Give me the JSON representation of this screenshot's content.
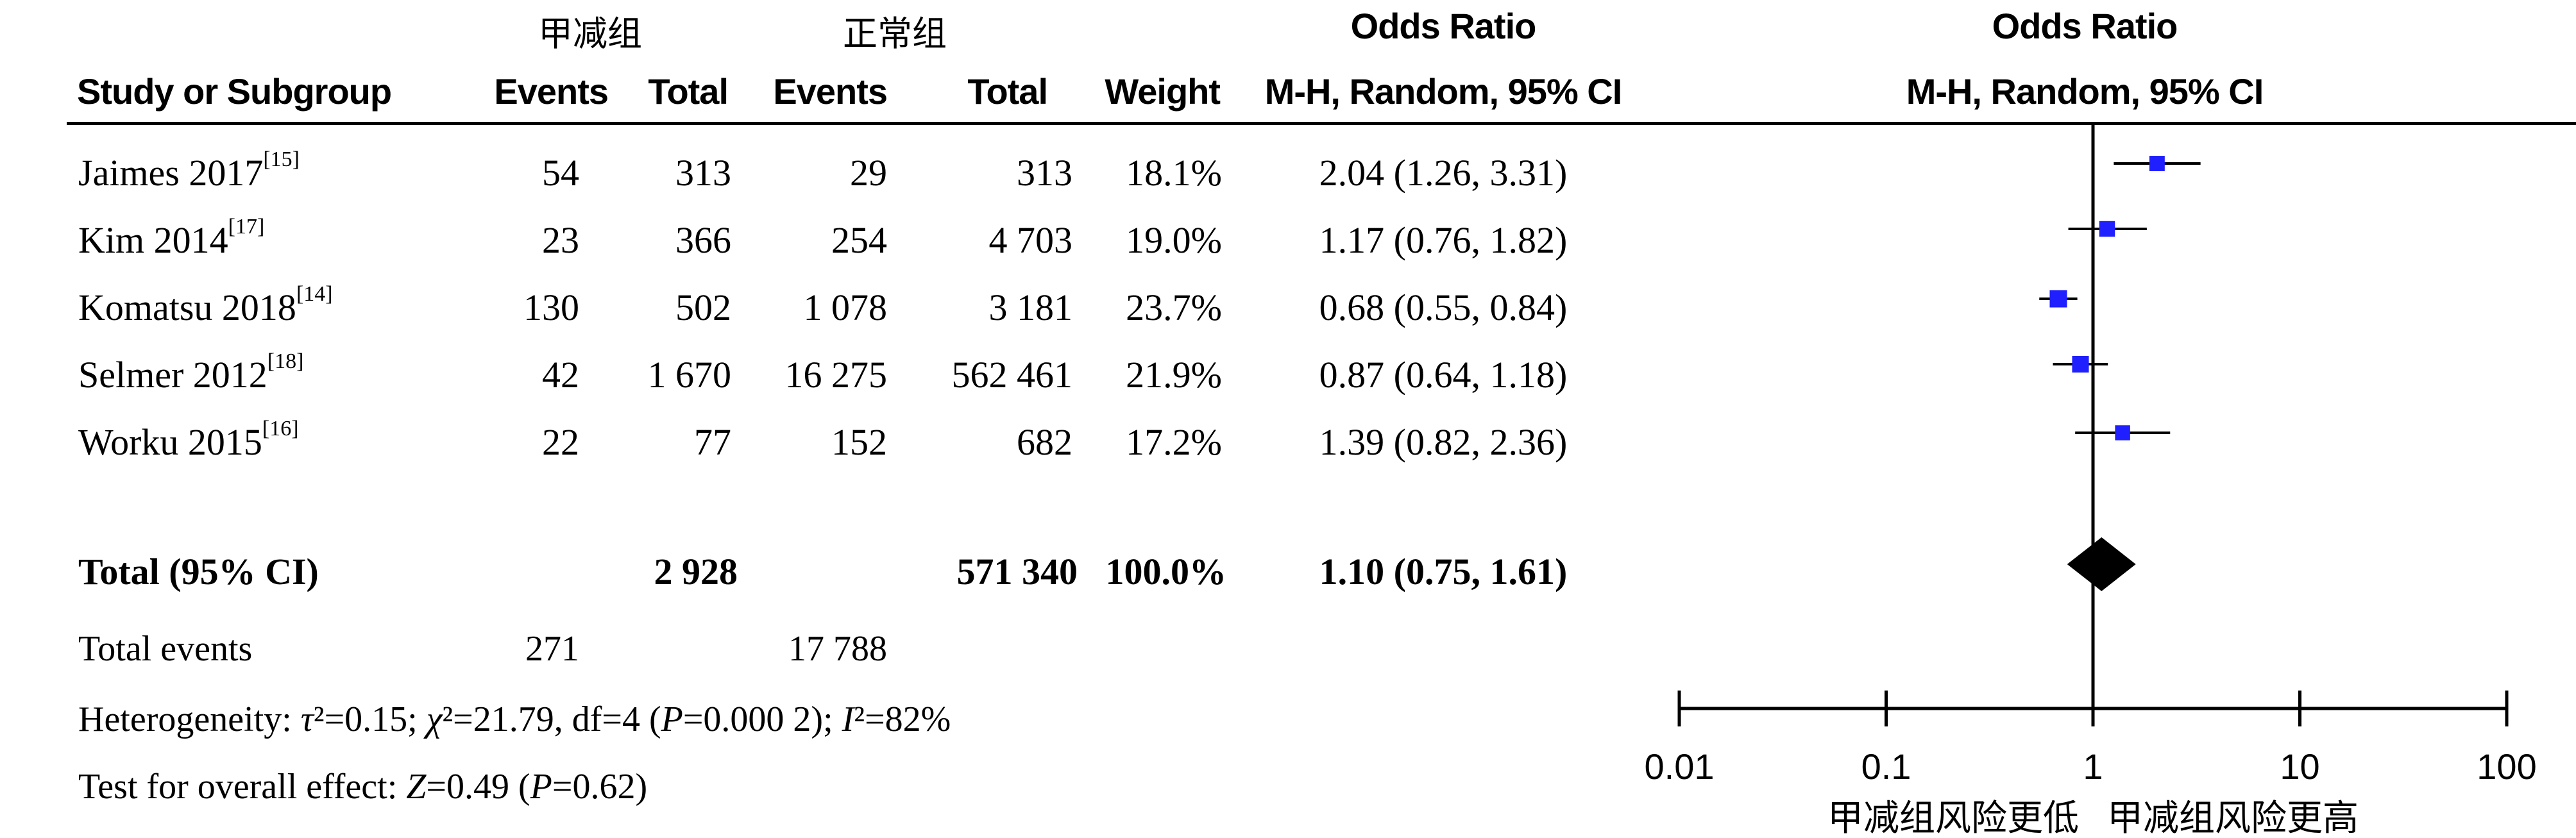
{
  "groups": {
    "experimental": "甲减组",
    "control": "正常组"
  },
  "header": {
    "odds_ratio_table": "Odds Ratio",
    "odds_ratio_plot": "Odds Ratio",
    "method_table": "M-H, Random, 95% CI",
    "method_plot": "M-H, Random, 95% CI",
    "study": "Study or Subgroup",
    "events1": "Events",
    "total1": "Total",
    "events2": "Events",
    "total2": "Total",
    "weight": "Weight"
  },
  "studies": [
    {
      "name": "Jaimes 2017",
      "ref": "[15]",
      "events1": "54",
      "total1": "313",
      "events2": "29",
      "total2": "313",
      "weight": "18.1%",
      "ci_text": "2.04 (1.26, 3.31)"
    },
    {
      "name": "Kim 2014",
      "ref": "[17]",
      "events1": "23",
      "total1": "366",
      "events2": "254",
      "total2": "4 703",
      "weight": "19.0%",
      "ci_text": "1.17 (0.76, 1.82)"
    },
    {
      "name": "Komatsu 2018",
      "ref": "[14]",
      "events1": "130",
      "total1": "502",
      "events2": "1 078",
      "total2": "3 181",
      "weight": "23.7%",
      "ci_text": "0.68 (0.55, 0.84)"
    },
    {
      "name": "Selmer 2012",
      "ref": "[18]",
      "events1": "42",
      "total1": "1 670",
      "events2": "16 275",
      "total2": "562 461",
      "weight": "21.9%",
      "ci_text": "0.87 (0.64, 1.18)"
    },
    {
      "name": "Worku 2015",
      "ref": "[16]",
      "events1": "22",
      "total1": "77",
      "events2": "152",
      "total2": "682",
      "weight": "17.2%",
      "ci_text": "1.39 (0.82, 2.36)"
    }
  ],
  "total": {
    "label": "Total (95% CI)",
    "total1": "2 928",
    "total2": "571 340",
    "weight": "100.0%",
    "ci_text": "1.10 (0.75, 1.61)"
  },
  "total_events": {
    "label": "Total events",
    "events1": "271",
    "events2": "17 788"
  },
  "heterogeneity": {
    "label": "Heterogeneity: ",
    "tau": "τ",
    "tau_val": "²=0.15; ",
    "chi": "χ",
    "chi_val": "²=21.79, df=4 (",
    "p": "P",
    "p_val": "=0.000 2); ",
    "i": "I",
    "i_val": "²=82%"
  },
  "overall_effect": {
    "label": "Test for overall effect: ",
    "z": "Z",
    "z_val": "=0.49 (",
    "p": "P",
    "p_val": "=0.62)"
  },
  "chart_data": {
    "type": "scatter",
    "subtype": "forest-plot",
    "x_scale": "log",
    "xlim": [
      0.01,
      100
    ],
    "x_ticks": [
      0.01,
      0.1,
      1,
      10,
      100
    ],
    "x_tick_labels": [
      "0.01",
      "0.1",
      "1",
      "10",
      "100"
    ],
    "reference_line": 1,
    "favours_left": "甲减组风险更低",
    "favours_right": "甲减组风险更高",
    "marker_color": "#1f1fff",
    "points": [
      {
        "study": "Jaimes 2017",
        "or": 2.04,
        "lower": 1.26,
        "upper": 3.31,
        "weight": 18.1
      },
      {
        "study": "Kim 2014",
        "or": 1.17,
        "lower": 0.76,
        "upper": 1.82,
        "weight": 19.0
      },
      {
        "study": "Komatsu 2018",
        "or": 0.68,
        "lower": 0.55,
        "upper": 0.84,
        "weight": 23.7
      },
      {
        "study": "Selmer 2012",
        "or": 0.87,
        "lower": 0.64,
        "upper": 1.18,
        "weight": 21.9
      },
      {
        "study": "Worku 2015",
        "or": 1.39,
        "lower": 0.82,
        "upper": 2.36,
        "weight": 17.2
      }
    ],
    "pooled": {
      "or": 1.1,
      "lower": 0.75,
      "upper": 1.61
    }
  }
}
